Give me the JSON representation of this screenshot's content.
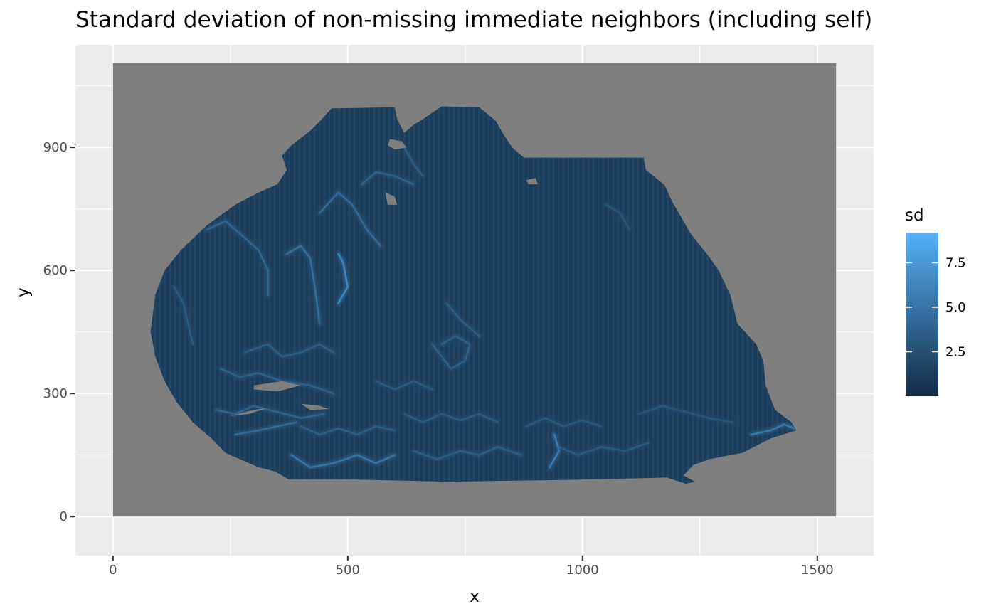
{
  "chart_data": {
    "type": "heatmap",
    "title": "Standard deviation of non-missing immediate neighbors (including self)",
    "xlabel": "x",
    "ylabel": "y",
    "xlim": [
      -80,
      1620
    ],
    "ylim": [
      -95,
      1150
    ],
    "x_ticks": [
      0,
      500,
      1000,
      1500
    ],
    "y_ticks": [
      0,
      300,
      600,
      900
    ],
    "x_minor": [
      250,
      750,
      1250
    ],
    "y_minor": [
      150,
      450,
      750,
      1050
    ],
    "raster_extent": {
      "x": [
        0,
        1540
      ],
      "y": [
        0,
        1105
      ]
    },
    "na_value_color": "#7f7f7f",
    "panel_background": "#ebebeb",
    "grid": true,
    "legend": {
      "title": "sd",
      "placement": "right",
      "breaks": [
        {
          "value": 2.5,
          "label": "2.5"
        },
        {
          "value": 5.0,
          "label": "5.0"
        },
        {
          "value": 7.5,
          "label": "7.5"
        }
      ],
      "range": [
        0,
        9.2
      ],
      "low_color": "#132b43",
      "high_color": "#56b1f7"
    },
    "tissue_outline": [
      [
        465,
        995
      ],
      [
        600,
        998
      ],
      [
        605,
        970
      ],
      [
        620,
        935
      ],
      [
        640,
        955
      ],
      [
        655,
        965
      ],
      [
        700,
        1000
      ],
      [
        780,
        998
      ],
      [
        815,
        965
      ],
      [
        830,
        935
      ],
      [
        850,
        900
      ],
      [
        875,
        875
      ],
      [
        1130,
        875
      ],
      [
        1135,
        845
      ],
      [
        1175,
        808
      ],
      [
        1190,
        770
      ],
      [
        1230,
        690
      ],
      [
        1265,
        640
      ],
      [
        1290,
        600
      ],
      [
        1315,
        540
      ],
      [
        1330,
        470
      ],
      [
        1370,
        420
      ],
      [
        1385,
        380
      ],
      [
        1390,
        320
      ],
      [
        1410,
        260
      ],
      [
        1445,
        230
      ],
      [
        1455,
        210
      ],
      [
        1400,
        190
      ],
      [
        1340,
        155
      ],
      [
        1270,
        140
      ],
      [
        1235,
        125
      ],
      [
        1215,
        100
      ],
      [
        1240,
        85
      ],
      [
        1220,
        80
      ],
      [
        1180,
        95
      ],
      [
        1000,
        90
      ],
      [
        720,
        85
      ],
      [
        520,
        90
      ],
      [
        375,
        90
      ],
      [
        345,
        110
      ],
      [
        310,
        120
      ],
      [
        240,
        155
      ],
      [
        210,
        190
      ],
      [
        170,
        230
      ],
      [
        135,
        280
      ],
      [
        110,
        330
      ],
      [
        90,
        390
      ],
      [
        80,
        450
      ],
      [
        90,
        540
      ],
      [
        110,
        600
      ],
      [
        145,
        650
      ],
      [
        200,
        710
      ],
      [
        260,
        760
      ],
      [
        310,
        790
      ],
      [
        350,
        810
      ],
      [
        370,
        845
      ],
      [
        360,
        880
      ],
      [
        380,
        905
      ],
      [
        420,
        940
      ],
      [
        450,
        975
      ]
    ],
    "highlights": [
      {
        "points": [
          [
            200,
            700
          ],
          [
            240,
            720
          ],
          [
            280,
            680
          ],
          [
            310,
            650
          ],
          [
            330,
            600
          ],
          [
            330,
            540
          ]
        ],
        "sd": 4.2
      },
      {
        "points": [
          [
            370,
            640
          ],
          [
            400,
            660
          ],
          [
            420,
            630
          ],
          [
            430,
            560
          ],
          [
            440,
            470
          ]
        ],
        "sd": 4.8
      },
      {
        "points": [
          [
            440,
            740
          ],
          [
            480,
            790
          ],
          [
            510,
            760
          ],
          [
            540,
            700
          ],
          [
            570,
            660
          ]
        ],
        "sd": 4.5
      },
      {
        "points": [
          [
            480,
            520
          ],
          [
            500,
            560
          ],
          [
            490,
            620
          ],
          [
            480,
            640
          ]
        ],
        "sd": 6.5
      },
      {
        "points": [
          [
            530,
            810
          ],
          [
            560,
            840
          ],
          [
            600,
            830
          ],
          [
            640,
            810
          ]
        ],
        "sd": 4.0
      },
      {
        "points": [
          [
            680,
            420
          ],
          [
            700,
            390
          ],
          [
            720,
            360
          ],
          [
            750,
            380
          ],
          [
            760,
            420
          ],
          [
            730,
            440
          ],
          [
            700,
            420
          ]
        ],
        "sd": 3.8
      },
      {
        "points": [
          [
            710,
            520
          ],
          [
            740,
            480
          ],
          [
            780,
            440
          ]
        ],
        "sd": 3.5
      },
      {
        "points": [
          [
            280,
            400
          ],
          [
            330,
            420
          ],
          [
            360,
            390
          ],
          [
            400,
            400
          ],
          [
            440,
            420
          ],
          [
            470,
            400
          ]
        ],
        "sd": 3.6
      },
      {
        "points": [
          [
            230,
            360
          ],
          [
            270,
            340
          ],
          [
            310,
            350
          ],
          [
            360,
            330
          ],
          [
            420,
            320
          ],
          [
            470,
            300
          ]
        ],
        "sd": 3.9
      },
      {
        "points": [
          [
            220,
            260
          ],
          [
            260,
            250
          ],
          [
            300,
            270
          ],
          [
            350,
            255
          ],
          [
            400,
            240
          ],
          [
            450,
            250
          ]
        ],
        "sd": 4.1
      },
      {
        "points": [
          [
            260,
            200
          ],
          [
            310,
            210
          ],
          [
            350,
            220
          ],
          [
            390,
            230
          ]
        ],
        "sd": 4.6
      },
      {
        "points": [
          [
            380,
            150
          ],
          [
            420,
            120
          ],
          [
            470,
            130
          ],
          [
            520,
            150
          ],
          [
            560,
            130
          ],
          [
            600,
            150
          ]
        ],
        "sd": 5.2
      },
      {
        "points": [
          [
            400,
            220
          ],
          [
            440,
            200
          ],
          [
            480,
            215
          ],
          [
            520,
            200
          ],
          [
            560,
            220
          ],
          [
            600,
            210
          ]
        ],
        "sd": 3.7
      },
      {
        "points": [
          [
            620,
            250
          ],
          [
            660,
            230
          ],
          [
            700,
            250
          ],
          [
            740,
            235
          ],
          [
            780,
            250
          ],
          [
            820,
            230
          ]
        ],
        "sd": 3.4
      },
      {
        "points": [
          [
            640,
            160
          ],
          [
            690,
            140
          ],
          [
            740,
            160
          ],
          [
            780,
            150
          ],
          [
            820,
            170
          ],
          [
            870,
            150
          ]
        ],
        "sd": 3.6
      },
      {
        "points": [
          [
            880,
            220
          ],
          [
            920,
            240
          ],
          [
            960,
            220
          ],
          [
            1000,
            235
          ],
          [
            1040,
            220
          ]
        ],
        "sd": 3.2
      },
      {
        "points": [
          [
            950,
            170
          ],
          [
            990,
            150
          ],
          [
            1040,
            170
          ],
          [
            1090,
            160
          ],
          [
            1140,
            180
          ]
        ],
        "sd": 3.3
      },
      {
        "points": [
          [
            1120,
            250
          ],
          [
            1170,
            270
          ],
          [
            1220,
            255
          ],
          [
            1270,
            240
          ],
          [
            1320,
            230
          ]
        ],
        "sd": 3.0
      },
      {
        "points": [
          [
            1360,
            200
          ],
          [
            1400,
            210
          ],
          [
            1430,
            225
          ],
          [
            1450,
            215
          ]
        ],
        "sd": 5.5
      },
      {
        "points": [
          [
            930,
            120
          ],
          [
            950,
            160
          ],
          [
            940,
            200
          ]
        ],
        "sd": 5.8
      },
      {
        "points": [
          [
            1050,
            760
          ],
          [
            1080,
            740
          ],
          [
            1100,
            700
          ]
        ],
        "sd": 3.0
      },
      {
        "points": [
          [
            620,
            900
          ],
          [
            640,
            860
          ],
          [
            660,
            830
          ]
        ],
        "sd": 3.6
      },
      {
        "points": [
          [
            560,
            330
          ],
          [
            600,
            310
          ],
          [
            640,
            330
          ],
          [
            680,
            310
          ]
        ],
        "sd": 3.3
      },
      {
        "points": [
          [
            130,
            560
          ],
          [
            150,
            520
          ],
          [
            160,
            470
          ],
          [
            170,
            420
          ]
        ],
        "sd": 3.4
      }
    ],
    "holes": [
      [
        [
          590,
          920
        ],
        [
          615,
          915
        ],
        [
          625,
          900
        ],
        [
          600,
          895
        ],
        [
          585,
          905
        ]
      ],
      [
        [
          580,
          790
        ],
        [
          600,
          780
        ],
        [
          605,
          760
        ],
        [
          585,
          760
        ]
      ],
      [
        [
          300,
          320
        ],
        [
          360,
          330
        ],
        [
          400,
          320
        ],
        [
          350,
          305
        ],
        [
          300,
          310
        ]
      ],
      [
        [
          250,
          245
        ],
        [
          300,
          260
        ],
        [
          330,
          265
        ],
        [
          290,
          250
        ]
      ],
      [
        [
          400,
          275
        ],
        [
          440,
          270
        ],
        [
          460,
          262
        ],
        [
          420,
          260
        ]
      ],
      [
        [
          880,
          820
        ],
        [
          900,
          825
        ],
        [
          905,
          810
        ],
        [
          885,
          810
        ]
      ]
    ]
  }
}
